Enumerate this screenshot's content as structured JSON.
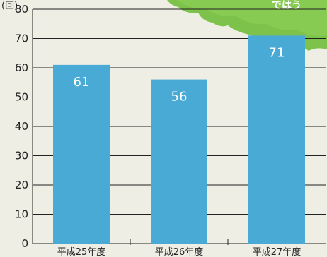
{
  "chart_data": {
    "type": "bar",
    "categories": [
      "平成25年度",
      "平成26年度",
      "平成27年度"
    ],
    "values": [
      61,
      56,
      71
    ],
    "data_labels": [
      "61",
      "56",
      "71"
    ],
    "ylim": [
      0,
      80
    ],
    "yticks": [
      "0",
      "10",
      "20",
      "30",
      "40",
      "50",
      "60",
      "70",
      "80"
    ],
    "y_unit": "(回)",
    "grid": true,
    "title": "",
    "xlabel": "",
    "ylabel": ""
  },
  "corner_caption": "ではう",
  "colors": {
    "bar": "#4aaad6",
    "background": "#efeee4",
    "decoration": "#7dc24a",
    "grid": "#222222"
  }
}
